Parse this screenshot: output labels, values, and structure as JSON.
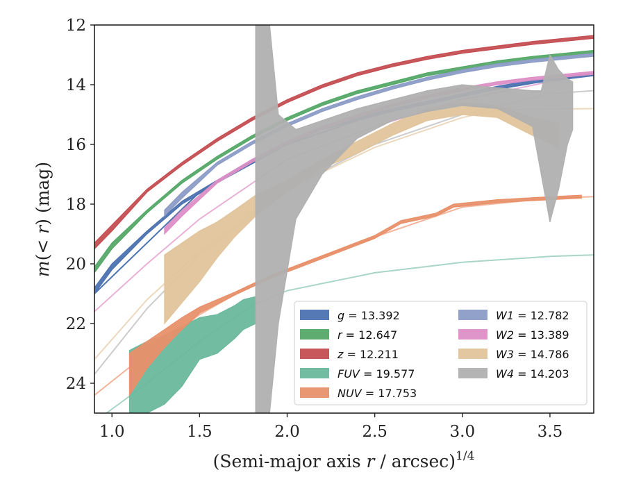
{
  "chart_data": {
    "type": "line",
    "xlabel": "(Semi-major axis r / arcsec)^1/4",
    "ylabel": "m(< r) (mag)",
    "xlim": [
      0.9,
      3.75
    ],
    "ylim": [
      25.0,
      12.0
    ],
    "y_inverted": true,
    "grid": false,
    "legend_position": "lower-right",
    "x_ticks": [
      1.0,
      1.5,
      2.0,
      2.5,
      3.0,
      3.5
    ],
    "x_tick_labels": [
      "1.0",
      "1.5",
      "2.0",
      "2.5",
      "3.0",
      "3.5"
    ],
    "y_ticks": [
      12,
      14,
      16,
      18,
      20,
      22,
      24
    ],
    "y_tick_labels": [
      "12",
      "14",
      "16",
      "18",
      "20",
      "22",
      "24"
    ],
    "series": [
      {
        "name": "g = 13.392",
        "band": "g",
        "total_mag": "13.392",
        "color": "#4c72b0",
        "bounds": [
          {
            "x": 0.9,
            "lo": 20.8,
            "hi": 21.0
          },
          {
            "x": 1.0,
            "lo": 20.0,
            "hi": 20.2
          },
          {
            "x": 1.2,
            "lo": 18.9,
            "hi": 19.0
          },
          {
            "x": 1.4,
            "lo": 17.9,
            "hi": 18.0
          },
          {
            "x": 1.6,
            "lo": 17.2,
            "hi": 17.3
          },
          {
            "x": 1.8,
            "lo": 16.5,
            "hi": 16.6
          },
          {
            "x": 2.0,
            "lo": 15.9,
            "hi": 16.0
          },
          {
            "x": 2.2,
            "lo": 15.4,
            "hi": 15.5
          },
          {
            "x": 2.4,
            "lo": 15.1,
            "hi": 15.2
          },
          {
            "x": 2.6,
            "lo": 14.8,
            "hi": 14.9
          },
          {
            "x": 2.8,
            "lo": 14.55,
            "hi": 14.65
          },
          {
            "x": 3.0,
            "lo": 14.3,
            "hi": 14.4
          },
          {
            "x": 3.2,
            "lo": 14.05,
            "hi": 14.15
          },
          {
            "x": 3.4,
            "lo": 13.85,
            "hi": 13.95
          },
          {
            "x": 3.75,
            "lo": 13.6,
            "hi": 13.7
          }
        ]
      },
      {
        "name": "r = 12.647",
        "band": "r",
        "total_mag": "12.647",
        "color": "#55a868",
        "bounds": [
          {
            "x": 0.9,
            "lo": 20.1,
            "hi": 20.3
          },
          {
            "x": 1.0,
            "lo": 19.3,
            "hi": 19.5
          },
          {
            "x": 1.2,
            "lo": 18.2,
            "hi": 18.3
          },
          {
            "x": 1.4,
            "lo": 17.2,
            "hi": 17.3
          },
          {
            "x": 1.6,
            "lo": 16.4,
            "hi": 16.5
          },
          {
            "x": 1.8,
            "lo": 15.7,
            "hi": 15.8
          },
          {
            "x": 2.0,
            "lo": 15.1,
            "hi": 15.2
          },
          {
            "x": 2.2,
            "lo": 14.6,
            "hi": 14.7
          },
          {
            "x": 2.4,
            "lo": 14.2,
            "hi": 14.3
          },
          {
            "x": 2.6,
            "lo": 13.9,
            "hi": 14.0
          },
          {
            "x": 2.8,
            "lo": 13.6,
            "hi": 13.7
          },
          {
            "x": 3.0,
            "lo": 13.4,
            "hi": 13.5
          },
          {
            "x": 3.2,
            "lo": 13.2,
            "hi": 13.3
          },
          {
            "x": 3.4,
            "lo": 13.05,
            "hi": 13.15
          },
          {
            "x": 3.75,
            "lo": 12.85,
            "hi": 12.95
          }
        ]
      },
      {
        "name": "z = 12.211",
        "band": "z",
        "total_mag": "12.211",
        "color": "#c44e52",
        "bounds": [
          {
            "x": 0.9,
            "lo": 19.3,
            "hi": 19.5
          },
          {
            "x": 1.0,
            "lo": 18.7,
            "hi": 18.9
          },
          {
            "x": 1.2,
            "lo": 17.5,
            "hi": 17.6
          },
          {
            "x": 1.4,
            "lo": 16.6,
            "hi": 16.7
          },
          {
            "x": 1.6,
            "lo": 15.8,
            "hi": 15.9
          },
          {
            "x": 1.8,
            "lo": 15.1,
            "hi": 15.2
          },
          {
            "x": 2.0,
            "lo": 14.5,
            "hi": 14.6
          },
          {
            "x": 2.2,
            "lo": 14.0,
            "hi": 14.1
          },
          {
            "x": 2.4,
            "lo": 13.6,
            "hi": 13.7
          },
          {
            "x": 2.6,
            "lo": 13.3,
            "hi": 13.4
          },
          {
            "x": 2.8,
            "lo": 13.05,
            "hi": 13.15
          },
          {
            "x": 3.0,
            "lo": 12.85,
            "hi": 12.95
          },
          {
            "x": 3.2,
            "lo": 12.7,
            "hi": 12.8
          },
          {
            "x": 3.4,
            "lo": 12.55,
            "hi": 12.65
          },
          {
            "x": 3.75,
            "lo": 12.35,
            "hi": 12.45
          }
        ]
      },
      {
        "name": "FUV = 19.577",
        "band": "FUV",
        "total_mag": "19.577",
        "color": "#6ab89c",
        "bounds": [
          {
            "x": 1.1,
            "lo": 22.9,
            "hi": 25.0
          },
          {
            "x": 1.2,
            "lo": 22.6,
            "hi": 25.0
          },
          {
            "x": 1.3,
            "lo": 22.4,
            "hi": 24.7
          },
          {
            "x": 1.4,
            "lo": 22.1,
            "hi": 24.1
          },
          {
            "x": 1.5,
            "lo": 21.8,
            "hi": 23.2
          },
          {
            "x": 1.6,
            "lo": 21.7,
            "hi": 23.0
          },
          {
            "x": 1.7,
            "lo": 21.4,
            "hi": 22.5
          },
          {
            "x": 1.75,
            "lo": 21.2,
            "hi": 22.2
          },
          {
            "x": 1.82,
            "lo": 21.1,
            "hi": 22.0
          }
        ]
      },
      {
        "name": "NUV = 17.753",
        "band": "NUV",
        "total_mag": "17.753",
        "color": "#e8906a",
        "bounds": [
          {
            "x": 1.1,
            "lo": 23.0,
            "hi": 24.4
          },
          {
            "x": 1.2,
            "lo": 22.6,
            "hi": 23.5
          },
          {
            "x": 1.3,
            "lo": 22.2,
            "hi": 22.8
          },
          {
            "x": 1.4,
            "lo": 21.8,
            "hi": 22.2
          },
          {
            "x": 1.5,
            "lo": 21.45,
            "hi": 21.65
          },
          {
            "x": 1.7,
            "lo": 20.95,
            "hi": 21.05
          },
          {
            "x": 1.9,
            "lo": 20.4,
            "hi": 20.5
          },
          {
            "x": 2.1,
            "lo": 19.95,
            "hi": 20.05
          },
          {
            "x": 2.3,
            "lo": 19.5,
            "hi": 19.6
          },
          {
            "x": 2.5,
            "lo": 19.05,
            "hi": 19.15
          },
          {
            "x": 2.65,
            "lo": 18.55,
            "hi": 18.65
          },
          {
            "x": 2.85,
            "lo": 18.3,
            "hi": 18.4
          },
          {
            "x": 2.95,
            "lo": 18.0,
            "hi": 18.1
          },
          {
            "x": 3.2,
            "lo": 17.85,
            "hi": 17.95
          },
          {
            "x": 3.5,
            "lo": 17.75,
            "hi": 17.85
          },
          {
            "x": 3.68,
            "lo": 17.7,
            "hi": 17.8
          }
        ]
      },
      {
        "name": "W1 = 12.782",
        "band": "W1",
        "total_mag": "12.782",
        "color": "#8c9cc6",
        "bounds": [
          {
            "x": 1.3,
            "lo": 18.2,
            "hi": 18.4
          },
          {
            "x": 1.4,
            "lo": 17.6,
            "hi": 17.8
          },
          {
            "x": 1.6,
            "lo": 16.6,
            "hi": 16.7
          },
          {
            "x": 1.8,
            "lo": 15.9,
            "hi": 16.0
          },
          {
            "x": 2.0,
            "lo": 15.3,
            "hi": 15.4
          },
          {
            "x": 2.2,
            "lo": 14.8,
            "hi": 14.9
          },
          {
            "x": 2.4,
            "lo": 14.4,
            "hi": 14.5
          },
          {
            "x": 2.6,
            "lo": 14.05,
            "hi": 14.15
          },
          {
            "x": 2.8,
            "lo": 13.75,
            "hi": 13.85
          },
          {
            "x": 3.0,
            "lo": 13.5,
            "hi": 13.6
          },
          {
            "x": 3.2,
            "lo": 13.3,
            "hi": 13.4
          },
          {
            "x": 3.4,
            "lo": 13.15,
            "hi": 13.25
          },
          {
            "x": 3.75,
            "lo": 12.95,
            "hi": 13.05
          }
        ]
      },
      {
        "name": "W2 = 13.389",
        "band": "W2",
        "total_mag": "13.389",
        "color": "#dd8fc6",
        "bounds": [
          {
            "x": 1.3,
            "lo": 18.8,
            "hi": 19.0
          },
          {
            "x": 1.4,
            "lo": 18.2,
            "hi": 18.4
          },
          {
            "x": 1.6,
            "lo": 17.2,
            "hi": 17.3
          },
          {
            "x": 1.8,
            "lo": 16.5,
            "hi": 16.6
          },
          {
            "x": 2.0,
            "lo": 15.9,
            "hi": 16.0
          },
          {
            "x": 2.2,
            "lo": 15.4,
            "hi": 15.5
          },
          {
            "x": 2.4,
            "lo": 15.0,
            "hi": 15.1
          },
          {
            "x": 2.6,
            "lo": 14.65,
            "hi": 14.75
          },
          {
            "x": 2.8,
            "lo": 14.35,
            "hi": 14.45
          },
          {
            "x": 3.0,
            "lo": 14.1,
            "hi": 14.2
          },
          {
            "x": 3.2,
            "lo": 13.9,
            "hi": 14.0
          },
          {
            "x": 3.4,
            "lo": 13.75,
            "hi": 13.85
          },
          {
            "x": 3.75,
            "lo": 13.55,
            "hi": 13.65
          }
        ]
      },
      {
        "name": "W3 = 14.786",
        "band": "W3",
        "total_mag": "14.786",
        "color": "#e0c49c",
        "bounds": [
          {
            "x": 1.3,
            "lo": 19.7,
            "hi": 22.0
          },
          {
            "x": 1.4,
            "lo": 19.3,
            "hi": 21.3
          },
          {
            "x": 1.5,
            "lo": 18.9,
            "hi": 20.6
          },
          {
            "x": 1.6,
            "lo": 18.6,
            "hi": 19.8
          },
          {
            "x": 1.7,
            "lo": 18.2,
            "hi": 19.1
          },
          {
            "x": 1.82,
            "lo": 17.7,
            "hi": 18.4
          },
          {
            "x": 2.0,
            "lo": 17.2,
            "hi": 17.6
          },
          {
            "x": 2.2,
            "lo": 16.5,
            "hi": 16.8
          },
          {
            "x": 2.4,
            "lo": 15.9,
            "hi": 16.3
          },
          {
            "x": 2.6,
            "lo": 15.3,
            "hi": 15.7
          },
          {
            "x": 2.8,
            "lo": 14.8,
            "hi": 15.2
          },
          {
            "x": 3.0,
            "lo": 14.6,
            "hi": 15.0
          },
          {
            "x": 3.2,
            "lo": 14.7,
            "hi": 15.1
          },
          {
            "x": 3.4,
            "lo": 15.1,
            "hi": 15.7
          },
          {
            "x": 3.55,
            "lo": 15.3,
            "hi": 16.1
          }
        ]
      },
      {
        "name": "W4 = 14.203",
        "band": "W4",
        "total_mag": "14.203",
        "color": "#b0b0b0",
        "bounds": [
          {
            "x": 1.82,
            "lo": 12.0,
            "hi": 25.0
          },
          {
            "x": 1.9,
            "lo": 12.0,
            "hi": 25.0
          },
          {
            "x": 1.95,
            "lo": 15.0,
            "hi": 22.0
          },
          {
            "x": 2.05,
            "lo": 15.5,
            "hi": 18.5
          },
          {
            "x": 2.2,
            "lo": 15.2,
            "hi": 17.0
          },
          {
            "x": 2.4,
            "lo": 14.8,
            "hi": 15.8
          },
          {
            "x": 2.6,
            "lo": 14.5,
            "hi": 15.2
          },
          {
            "x": 2.8,
            "lo": 14.2,
            "hi": 14.9
          },
          {
            "x": 3.0,
            "lo": 14.0,
            "hi": 14.7
          },
          {
            "x": 3.2,
            "lo": 14.1,
            "hi": 14.8
          },
          {
            "x": 3.4,
            "lo": 14.2,
            "hi": 15.4
          },
          {
            "x": 3.45,
            "lo": 14.2,
            "hi": 17.0
          },
          {
            "x": 3.5,
            "lo": 13.0,
            "hi": 18.6
          },
          {
            "x": 3.55,
            "lo": 13.5,
            "hi": 17.5
          },
          {
            "x": 3.6,
            "lo": 13.8,
            "hi": 16.0
          },
          {
            "x": 3.63,
            "lo": 13.9,
            "hi": 15.5
          }
        ]
      }
    ],
    "model_curves": [
      {
        "band": "g",
        "color": "#4c72b0",
        "points": [
          [
            0.9,
            21.0
          ],
          [
            1.5,
            17.6
          ],
          [
            2.0,
            16.0
          ],
          [
            2.5,
            15.0
          ],
          [
            3.0,
            14.35
          ],
          [
            3.5,
            13.85
          ],
          [
            3.75,
            13.65
          ]
        ]
      },
      {
        "band": "FUV",
        "color": "#a8d5c4",
        "points": [
          [
            0.9,
            25.3
          ],
          [
            1.2,
            24.0
          ],
          [
            1.5,
            22.6
          ],
          [
            1.8,
            21.4
          ],
          [
            2.0,
            20.9
          ],
          [
            2.5,
            20.3
          ],
          [
            3.0,
            19.95
          ],
          [
            3.5,
            19.75
          ],
          [
            3.75,
            19.7
          ]
        ]
      },
      {
        "band": "NUV",
        "color": "#f2b49a",
        "points": [
          [
            0.9,
            24.4
          ],
          [
            1.2,
            23.0
          ],
          [
            1.5,
            21.7
          ],
          [
            1.8,
            20.7
          ],
          [
            2.0,
            20.2
          ],
          [
            2.5,
            19.1
          ],
          [
            3.0,
            18.1
          ],
          [
            3.5,
            17.8
          ],
          [
            3.75,
            17.75
          ]
        ]
      },
      {
        "band": "W2",
        "color": "#e8b0d6",
        "points": [
          [
            0.9,
            21.6
          ],
          [
            1.2,
            20.0
          ],
          [
            1.5,
            18.5
          ],
          [
            1.8,
            17.3
          ],
          [
            2.0,
            16.5
          ],
          [
            2.5,
            15.4
          ],
          [
            3.0,
            14.5
          ],
          [
            3.5,
            13.9
          ],
          [
            3.75,
            13.65
          ]
        ]
      },
      {
        "band": "W3",
        "color": "#ecd8bc",
        "points": [
          [
            0.9,
            23.2
          ],
          [
            1.2,
            21.2
          ],
          [
            1.5,
            19.6
          ],
          [
            1.8,
            18.3
          ],
          [
            2.0,
            17.5
          ],
          [
            2.5,
            16.1
          ],
          [
            3.0,
            15.1
          ],
          [
            3.2,
            14.85
          ],
          [
            3.75,
            14.8
          ]
        ]
      },
      {
        "band": "W4",
        "color": "#cccccc",
        "points": [
          [
            0.9,
            23.7
          ],
          [
            1.2,
            21.5
          ],
          [
            1.5,
            19.7
          ],
          [
            1.8,
            18.4
          ],
          [
            2.0,
            17.5
          ],
          [
            2.5,
            16.0
          ],
          [
            3.0,
            15.0
          ],
          [
            3.5,
            14.3
          ],
          [
            3.75,
            14.2
          ]
        ]
      }
    ]
  }
}
